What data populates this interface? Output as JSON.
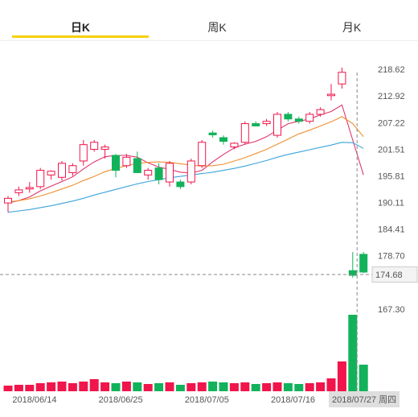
{
  "tabs": [
    {
      "label": "日K",
      "active": true
    },
    {
      "label": "周K",
      "active": false
    },
    {
      "label": "月K",
      "active": false
    }
  ],
  "cursor": {
    "price_label": "174.68",
    "date_label": "2018/07/27 周四"
  },
  "colors": {
    "up": "#f0154a",
    "down": "#12b25b",
    "ma5": "#e0336b",
    "ma10": "#ef8f2f",
    "ma20": "#3aa4dc",
    "accent": "#f5d20a"
  },
  "chart_data": {
    "type": "candlestick",
    "y_ticks": [
      "218.62",
      "212.92",
      "207.22",
      "201.51",
      "195.81",
      "190.11",
      "184.41",
      "178.70",
      "167.30"
    ],
    "price_range": [
      164.5,
      224.0
    ],
    "x_tick_labels": [
      {
        "index": 1,
        "label": "2018/06/14"
      },
      {
        "index": 9,
        "label": "2018/06/25"
      },
      {
        "index": 17,
        "label": "2018/07/05"
      },
      {
        "index": 25,
        "label": "2018/07/16"
      },
      {
        "index": 32,
        "label": "20"
      }
    ],
    "candles": [
      {
        "o": 190.0,
        "h": 191.5,
        "l": 188.0,
        "c": 191.0
      },
      {
        "o": 192.2,
        "h": 193.5,
        "l": 191.5,
        "c": 192.8
      },
      {
        "o": 193.0,
        "h": 194.5,
        "l": 192.2,
        "c": 193.3
      },
      {
        "o": 193.5,
        "h": 197.5,
        "l": 193.0,
        "c": 197.0
      },
      {
        "o": 196.0,
        "h": 197.0,
        "l": 195.0,
        "c": 196.8
      },
      {
        "o": 195.5,
        "h": 199.0,
        "l": 194.8,
        "c": 198.5
      },
      {
        "o": 196.5,
        "h": 198.5,
        "l": 195.8,
        "c": 198.0
      },
      {
        "o": 199.0,
        "h": 203.5,
        "l": 198.0,
        "c": 202.5
      },
      {
        "o": 201.5,
        "h": 203.5,
        "l": 201.0,
        "c": 203.0
      },
      {
        "o": 201.5,
        "h": 202.5,
        "l": 199.5,
        "c": 202.0
      },
      {
        "o": 200.2,
        "h": 200.5,
        "l": 195.5,
        "c": 197.0
      },
      {
        "o": 198.0,
        "h": 200.5,
        "l": 197.5,
        "c": 199.8
      },
      {
        "o": 199.5,
        "h": 201.0,
        "l": 196.5,
        "c": 196.5
      },
      {
        "o": 196.0,
        "h": 197.5,
        "l": 195.0,
        "c": 197.0
      },
      {
        "o": 197.5,
        "h": 198.5,
        "l": 194.0,
        "c": 195.0
      },
      {
        "o": 194.5,
        "h": 199.0,
        "l": 193.5,
        "c": 198.5
      },
      {
        "o": 194.5,
        "h": 195.0,
        "l": 193.0,
        "c": 193.5
      },
      {
        "o": 194.5,
        "h": 199.5,
        "l": 194.0,
        "c": 199.0
      },
      {
        "o": 198.0,
        "h": 203.5,
        "l": 197.5,
        "c": 203.0
      },
      {
        "o": 205.0,
        "h": 205.5,
        "l": 204.0,
        "c": 204.6
      },
      {
        "o": 204.0,
        "h": 204.5,
        "l": 202.5,
        "c": 203.2
      },
      {
        "o": 202.0,
        "h": 203.0,
        "l": 201.5,
        "c": 202.8
      },
      {
        "o": 203.0,
        "h": 207.5,
        "l": 202.5,
        "c": 207.0
      },
      {
        "o": 207.0,
        "h": 207.5,
        "l": 206.5,
        "c": 206.5
      },
      {
        "o": 207.0,
        "h": 208.0,
        "l": 206.5,
        "c": 207.5
      },
      {
        "o": 204.5,
        "h": 209.5,
        "l": 204.0,
        "c": 209.0
      },
      {
        "o": 209.0,
        "h": 209.5,
        "l": 207.5,
        "c": 208.0
      },
      {
        "o": 208.0,
        "h": 208.5,
        "l": 207.0,
        "c": 207.5
      },
      {
        "o": 207.5,
        "h": 209.5,
        "l": 207.0,
        "c": 209.0
      },
      {
        "o": 209.0,
        "h": 210.5,
        "l": 208.5,
        "c": 210.0
      },
      {
        "o": 213.0,
        "h": 215.5,
        "l": 212.0,
        "c": 213.3
      },
      {
        "o": 215.5,
        "h": 219.0,
        "l": 214.5,
        "c": 218.0
      },
      {
        "o": 175.5,
        "h": 179.5,
        "l": 174.0,
        "c": 174.5
      },
      {
        "o": 179.0,
        "h": 179.5,
        "l": 175.0,
        "c": 175.2
      }
    ],
    "ma_lines": [
      {
        "key": "ma5",
        "values": [
          190.0,
          190.5,
          191.3,
          192.6,
          193.6,
          194.6,
          195.6,
          197.3,
          198.8,
          199.9,
          200.2,
          200.2,
          199.8,
          198.6,
          197.7,
          197.2,
          196.6,
          196.4,
          197.0,
          198.8,
          200.4,
          201.8,
          202.6,
          203.2,
          204.2,
          205.6,
          207.0,
          207.5,
          208.0,
          208.9,
          209.6,
          211.0,
          203.5,
          196.0
        ]
      },
      {
        "key": "ma10",
        "values": [
          190.2,
          190.5,
          190.9,
          191.5,
          192.2,
          193.0,
          193.8,
          194.8,
          195.7,
          196.7,
          197.4,
          198.0,
          198.5,
          198.7,
          198.8,
          198.7,
          198.4,
          198.1,
          197.9,
          198.0,
          198.3,
          199.0,
          199.7,
          200.6,
          201.5,
          202.6,
          203.7,
          204.8,
          205.6,
          206.5,
          207.4,
          208.5,
          207.0,
          204.2
        ]
      },
      {
        "key": "ma20",
        "values": [
          188.0,
          188.3,
          188.6,
          189.0,
          189.4,
          189.9,
          190.4,
          191.0,
          191.7,
          192.3,
          192.9,
          193.5,
          194.1,
          194.6,
          195.0,
          195.4,
          195.7,
          196.0,
          196.3,
          196.6,
          197.0,
          197.4,
          197.9,
          198.5,
          199.1,
          199.8,
          200.4,
          200.9,
          201.4,
          201.9,
          202.4,
          203.0,
          202.9,
          201.7
        ]
      }
    ],
    "volumes": [
      0.07,
      0.08,
      0.08,
      0.1,
      0.11,
      0.12,
      0.1,
      0.12,
      0.15,
      0.11,
      0.1,
      0.12,
      0.11,
      0.09,
      0.1,
      0.11,
      0.08,
      0.1,
      0.11,
      0.12,
      0.11,
      0.1,
      0.11,
      0.09,
      0.1,
      0.11,
      0.1,
      0.09,
      0.1,
      0.11,
      0.16,
      0.37,
      0.95,
      0.33
    ]
  }
}
